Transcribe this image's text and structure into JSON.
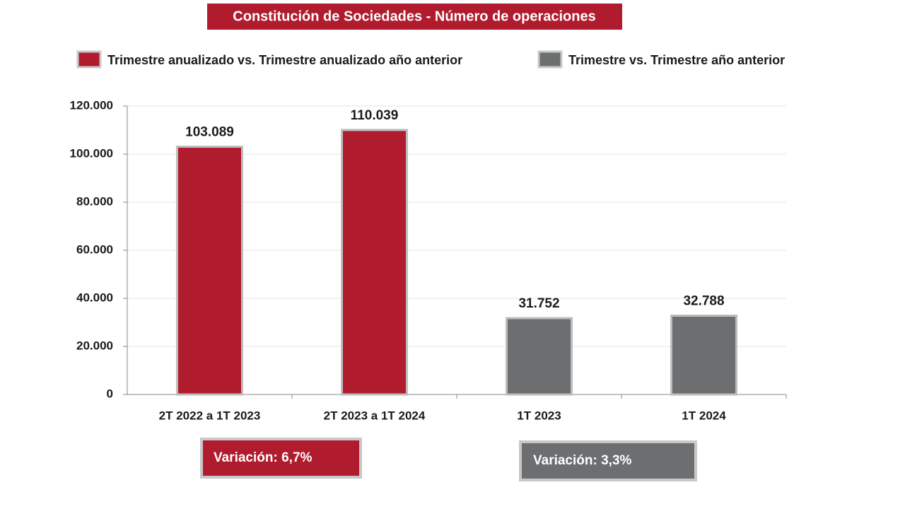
{
  "chart_data": {
    "type": "bar",
    "title": "Constitución de Sociedades - Número de operaciones",
    "categories": [
      "2T 2022 a 1T 2023",
      "2T 2023 a 1T 2024",
      "1T 2023",
      "1T 2024"
    ],
    "series": [
      {
        "name": "Trimestre anualizado vs. Trimestre anualizado año anterior",
        "color": "#b01c2e",
        "values": [
          103089,
          110039,
          null,
          null
        ],
        "value_labels": [
          "103.089",
          "110.039",
          null,
          null
        ]
      },
      {
        "name": "Trimestre vs. Trimestre año anterior",
        "color": "#6d6e70",
        "values": [
          null,
          null,
          31752,
          32788
        ],
        "value_labels": [
          null,
          null,
          "31.752",
          "32.788"
        ]
      }
    ],
    "ylim": [
      0,
      120000
    ],
    "yticks": [
      0,
      {
        "value": 20000,
        "label": "20.000"
      },
      {
        "value": 40000,
        "label": "40.000"
      },
      {
        "value": 60000,
        "label": "60.000"
      },
      {
        "value": 80000,
        "label": "80.000"
      },
      {
        "value": 100000,
        "label": "100.000"
      },
      {
        "value": 120000,
        "label": "120.000"
      }
    ],
    "grid": true,
    "annotations": [
      "Variación:  6,7%",
      "Variación: 3,3%"
    ]
  }
}
